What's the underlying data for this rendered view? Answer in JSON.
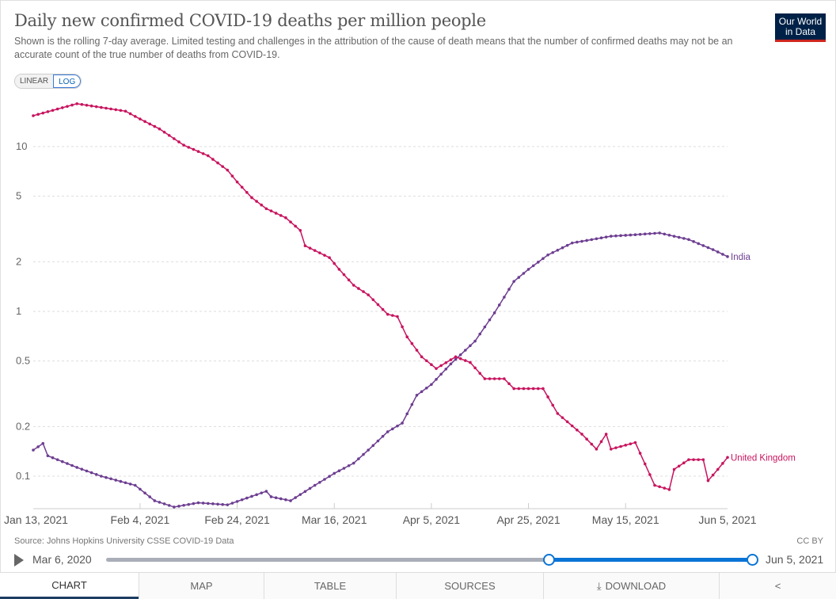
{
  "header": {
    "title": "Daily new confirmed COVID-19 deaths per million people",
    "subtitle": "Shown is the rolling 7-day average. Limited testing and challenges in the attribution of the cause of death means that the number of confirmed deaths may not be an accurate count of the true number of deaths from COVID-19.",
    "logo": "Our World in Data"
  },
  "scale_toggle": {
    "linear": "LINEAR",
    "log": "LOG",
    "selected": "LOG"
  },
  "chart_data": {
    "type": "line",
    "title": "Daily new confirmed COVID-19 deaths per million people",
    "yscale": "log",
    "ylim": [
      0.07,
      18
    ],
    "xlim": [
      "2021-01-13",
      "2021-06-05"
    ],
    "yticks": [
      "0.1",
      "0.2",
      "0.5",
      "1",
      "2",
      "5",
      "10"
    ],
    "ytick_values": [
      0.1,
      0.2,
      0.5,
      1,
      2,
      5,
      10
    ],
    "xticks": [
      "Jan 13, 2021",
      "Feb 4, 2021",
      "Feb 24, 2021",
      "Mar 16, 2021",
      "Apr 5, 2021",
      "Apr 25, 2021",
      "May 15, 2021",
      "Jun 5, 2021"
    ],
    "xtick_dates": [
      "2021-01-13",
      "2021-02-04",
      "2021-02-24",
      "2021-03-16",
      "2021-04-05",
      "2021-04-25",
      "2021-05-15",
      "2021-06-05"
    ],
    "grid": true,
    "legend_placement": "line-end labels",
    "series": [
      {
        "name": "India",
        "color": "#6d3e91",
        "points": [
          [
            "2021-01-13",
            0.144
          ],
          [
            "2021-01-15",
            0.158
          ],
          [
            "2021-01-16",
            0.133
          ],
          [
            "2021-01-22",
            0.113
          ],
          [
            "2021-01-27",
            0.1
          ],
          [
            "2021-02-03",
            0.088
          ],
          [
            "2021-02-07",
            0.071
          ],
          [
            "2021-02-11",
            0.065
          ],
          [
            "2021-02-16",
            0.069
          ],
          [
            "2021-02-22",
            0.067
          ],
          [
            "2021-03-02",
            0.081
          ],
          [
            "2021-03-03",
            0.075
          ],
          [
            "2021-03-07",
            0.071
          ],
          [
            "2021-03-12",
            0.088
          ],
          [
            "2021-03-16",
            0.104
          ],
          [
            "2021-03-20",
            0.12
          ],
          [
            "2021-03-23",
            0.144
          ],
          [
            "2021-03-27",
            0.186
          ],
          [
            "2021-03-30",
            0.21
          ],
          [
            "2021-04-02",
            0.31
          ],
          [
            "2021-04-05",
            0.36
          ],
          [
            "2021-04-09",
            0.48
          ],
          [
            "2021-04-14",
            0.66
          ],
          [
            "2021-04-18",
            0.98
          ],
          [
            "2021-04-22",
            1.52
          ],
          [
            "2021-04-25",
            1.8
          ],
          [
            "2021-04-29",
            2.2
          ],
          [
            "2021-05-04",
            2.6
          ],
          [
            "2021-05-12",
            2.86
          ],
          [
            "2021-05-17",
            2.92
          ],
          [
            "2021-05-22",
            2.99
          ],
          [
            "2021-05-28",
            2.73
          ],
          [
            "2021-06-02",
            2.37
          ],
          [
            "2021-06-05",
            2.15
          ]
        ]
      },
      {
        "name": "United Kingdom",
        "color": "#c8145f",
        "points": [
          [
            "2021-01-13",
            15.4
          ],
          [
            "2021-01-22",
            18.2
          ],
          [
            "2021-02-01",
            16.4
          ],
          [
            "2021-02-04",
            14.7
          ],
          [
            "2021-02-08",
            12.8
          ],
          [
            "2021-02-13",
            10.2
          ],
          [
            "2021-02-18",
            8.8
          ],
          [
            "2021-02-22",
            7.2
          ],
          [
            "2021-02-24",
            6.1
          ],
          [
            "2021-02-27",
            4.9
          ],
          [
            "2021-03-02",
            4.2
          ],
          [
            "2021-03-06",
            3.7
          ],
          [
            "2021-03-09",
            3.1
          ],
          [
            "2021-03-10",
            2.5
          ],
          [
            "2021-03-15",
            2.12
          ],
          [
            "2021-03-17",
            1.8
          ],
          [
            "2021-03-20",
            1.44
          ],
          [
            "2021-03-23",
            1.26
          ],
          [
            "2021-03-27",
            0.96
          ],
          [
            "2021-03-29",
            0.93
          ],
          [
            "2021-03-31",
            0.7
          ],
          [
            "2021-04-03",
            0.53
          ],
          [
            "2021-04-06",
            0.45
          ],
          [
            "2021-04-10",
            0.53
          ],
          [
            "2021-04-13",
            0.49
          ],
          [
            "2021-04-16",
            0.39
          ],
          [
            "2021-04-20",
            0.39
          ],
          [
            "2021-04-22",
            0.34
          ],
          [
            "2021-04-28",
            0.34
          ],
          [
            "2021-05-01",
            0.24
          ],
          [
            "2021-05-06",
            0.18
          ],
          [
            "2021-05-09",
            0.146
          ],
          [
            "2021-05-11",
            0.18
          ],
          [
            "2021-05-12",
            0.146
          ],
          [
            "2021-05-17",
            0.16
          ],
          [
            "2021-05-21",
            0.088
          ],
          [
            "2021-05-24",
            0.083
          ],
          [
            "2021-05-25",
            0.11
          ],
          [
            "2021-05-28",
            0.126
          ],
          [
            "2021-05-31",
            0.126
          ],
          [
            "2021-06-01",
            0.094
          ],
          [
            "2021-06-03",
            0.11
          ],
          [
            "2021-06-05",
            0.13
          ]
        ]
      }
    ]
  },
  "footer": {
    "source": "Source: Johns Hopkins University CSSE COVID-19 Data",
    "license": "CC BY"
  },
  "timeline": {
    "start_label": "Mar 6, 2020",
    "end_label": "Jun 5, 2021",
    "selection_start_fraction": 0.685,
    "selection_end_fraction": 1.0
  },
  "tabs": [
    {
      "label": "CHART"
    },
    {
      "label": "MAP"
    },
    {
      "label": "TABLE"
    },
    {
      "label": "SOURCES"
    },
    {
      "label": "DOWNLOAD",
      "icon": "download-icon"
    },
    {
      "label": "",
      "icon": "share-icon"
    }
  ]
}
